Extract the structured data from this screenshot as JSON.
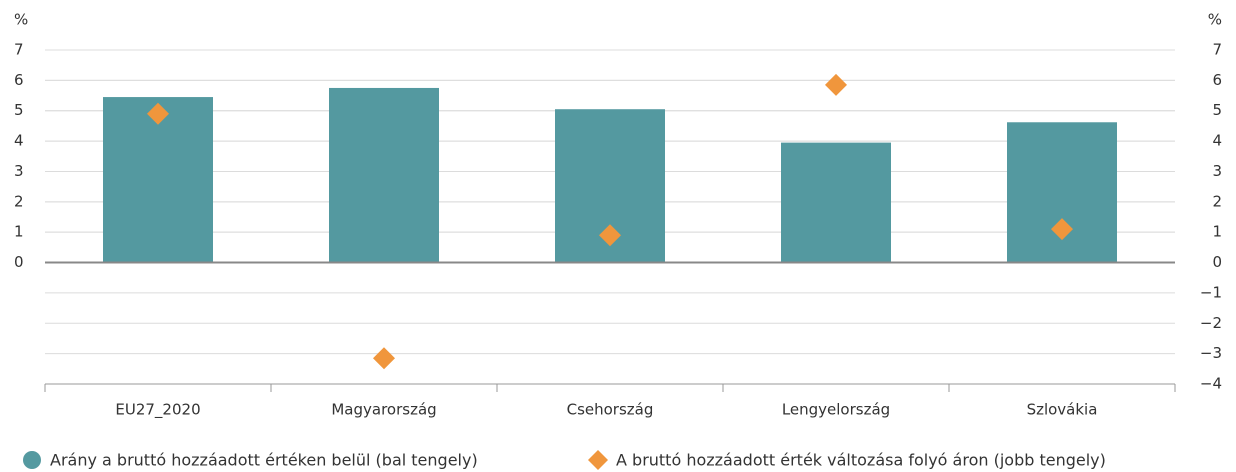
{
  "chart_data": {
    "type": "bar",
    "y_label": "%",
    "y2_label": "%",
    "categories": [
      "EU27_2020",
      "Magyarország",
      "Csehország",
      "Lengyelország",
      "Szlovákia"
    ],
    "series": [
      {
        "name": "Arány a bruttó hozzáadott értéken belül (bal tengely)",
        "type": "bar",
        "color": "#5499a0",
        "values": [
          5.45,
          5.75,
          5.05,
          3.95,
          4.62
        ]
      },
      {
        "name": "A bruttó hozzáadott érték változása folyó áron (jobb tengely)",
        "type": "scatter",
        "axis": "y2",
        "color": "#f0963c",
        "values": [
          4.9,
          -3.15,
          0.9,
          5.85,
          1.1
        ]
      }
    ],
    "ylim": [
      -4,
      7
    ],
    "yticks": [
      0,
      1,
      2,
      3,
      4,
      5,
      6,
      7
    ],
    "y2lim": [
      -4,
      7
    ],
    "y2ticks": [
      {
        "value": -4,
        "label": "−4"
      },
      {
        "value": -3,
        "label": "−3"
      },
      {
        "value": -2,
        "label": "−2"
      },
      {
        "value": -1,
        "label": "−1"
      },
      0,
      1,
      2,
      3,
      4,
      5,
      6,
      7
    ],
    "grid": true
  }
}
